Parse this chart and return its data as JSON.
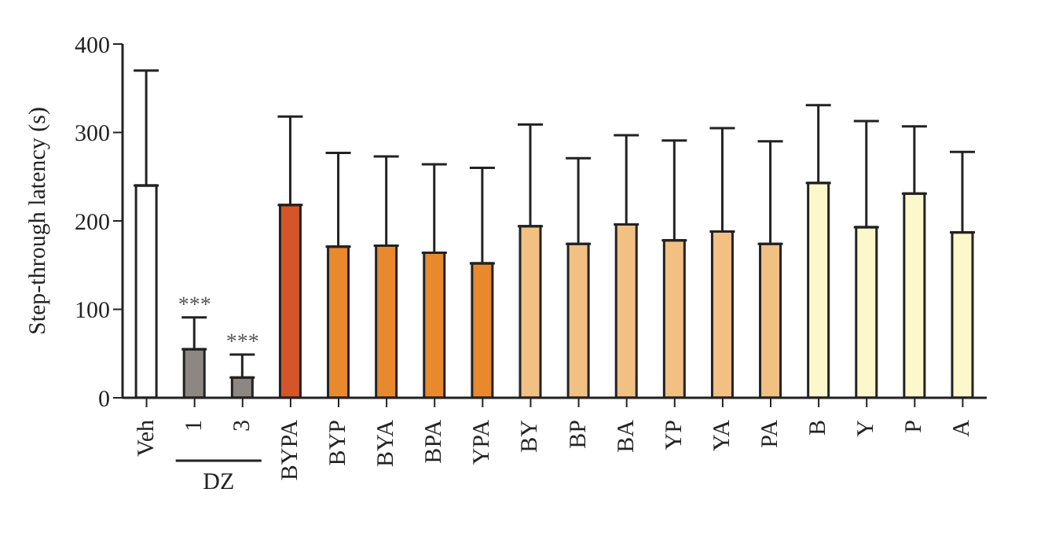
{
  "chart_data": {
    "type": "bar",
    "ylabel": "Step-through latency (s)",
    "categories": [
      "Veh",
      "1",
      "3",
      "BYPA",
      "BYP",
      "BYA",
      "BPA",
      "YPA",
      "BY",
      "BP",
      "BA",
      "YP",
      "YA",
      "PA",
      "B",
      "Y",
      "P",
      "A"
    ],
    "values": [
      240,
      55,
      23,
      218,
      171,
      172,
      164,
      152,
      194,
      174,
      196,
      178,
      188,
      174,
      243,
      193,
      231,
      187
    ],
    "errors": [
      [
        240,
        370
      ],
      [
        55,
        91
      ],
      [
        23,
        49
      ],
      [
        218,
        318
      ],
      [
        171,
        277
      ],
      [
        172,
        273
      ],
      [
        164,
        264
      ],
      [
        152,
        260
      ],
      [
        194,
        309
      ],
      [
        174,
        271
      ],
      [
        196,
        297
      ],
      [
        178,
        291
      ],
      [
        188,
        305
      ],
      [
        174,
        290
      ],
      [
        243,
        331
      ],
      [
        193,
        313
      ],
      [
        231,
        307
      ],
      [
        187,
        278
      ]
    ],
    "colors": [
      "#ffffff",
      "#8c8782",
      "#8c8782",
      "#d4552a",
      "#e8892e",
      "#e8892e",
      "#e8892e",
      "#e8892e",
      "#f2c083",
      "#f2c083",
      "#f2c083",
      "#f2c083",
      "#f2c083",
      "#f2c083",
      "#fdf8cc",
      "#fdf8cc",
      "#fdf8cc",
      "#fdf8cc"
    ],
    "ylim": [
      0,
      400
    ],
    "yticks": [
      0,
      100,
      200,
      300,
      400
    ],
    "grid": false,
    "annotations": [
      "***",
      "***",
      "DZ"
    ]
  }
}
